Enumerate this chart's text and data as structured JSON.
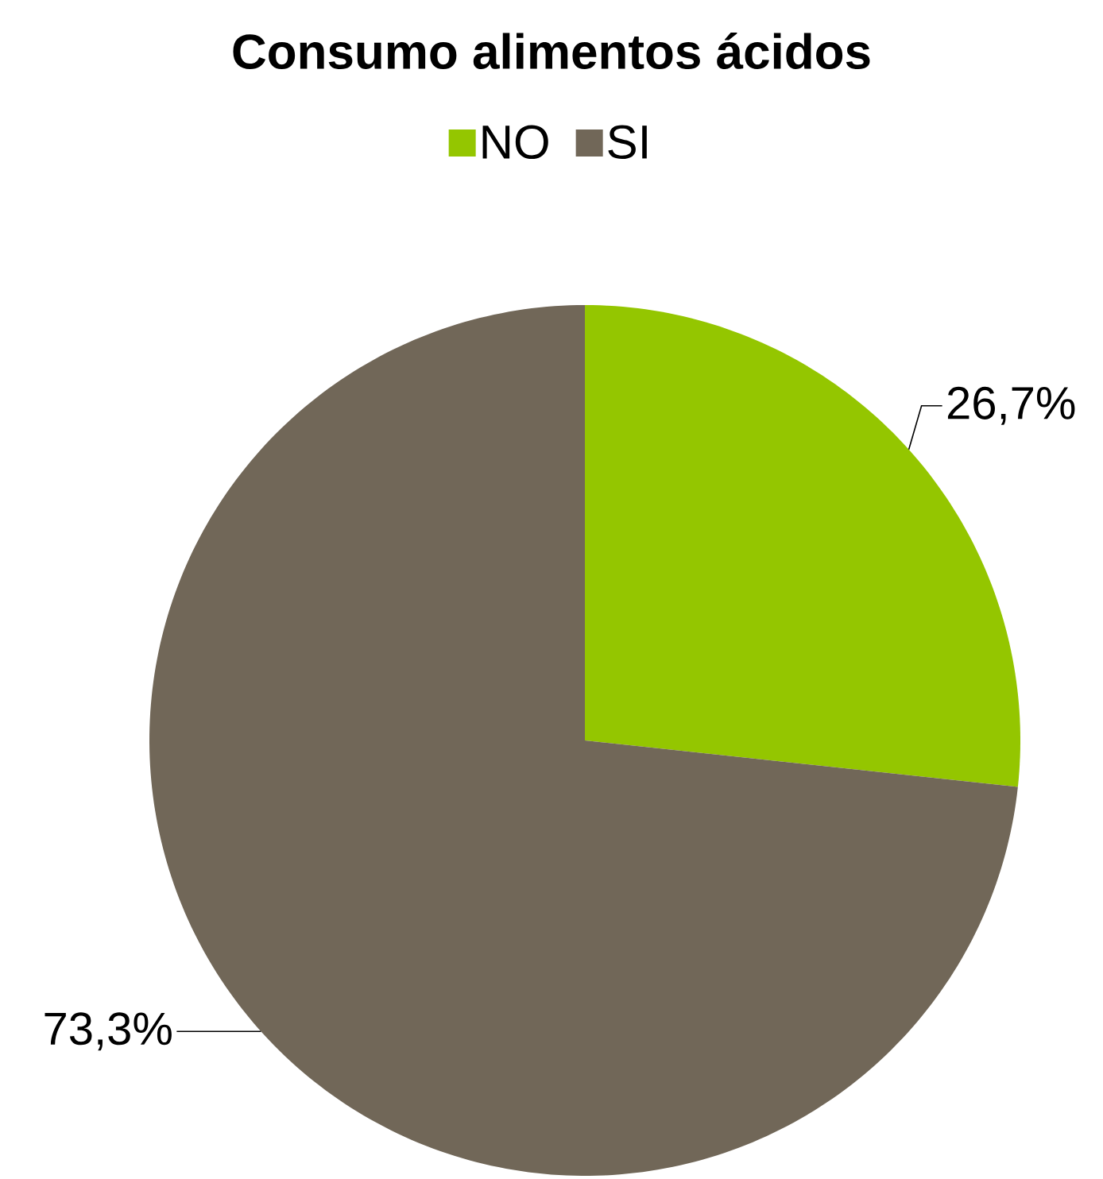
{
  "chart_data": {
    "type": "pie",
    "title": "Consumo alimentos ácidos",
    "categories": [
      "NO",
      "SI"
    ],
    "values": [
      26.7,
      73.3
    ],
    "colors": [
      "#94c600",
      "#716758"
    ],
    "value_labels": [
      "26,7%",
      "73,3%"
    ],
    "legend": "top"
  }
}
